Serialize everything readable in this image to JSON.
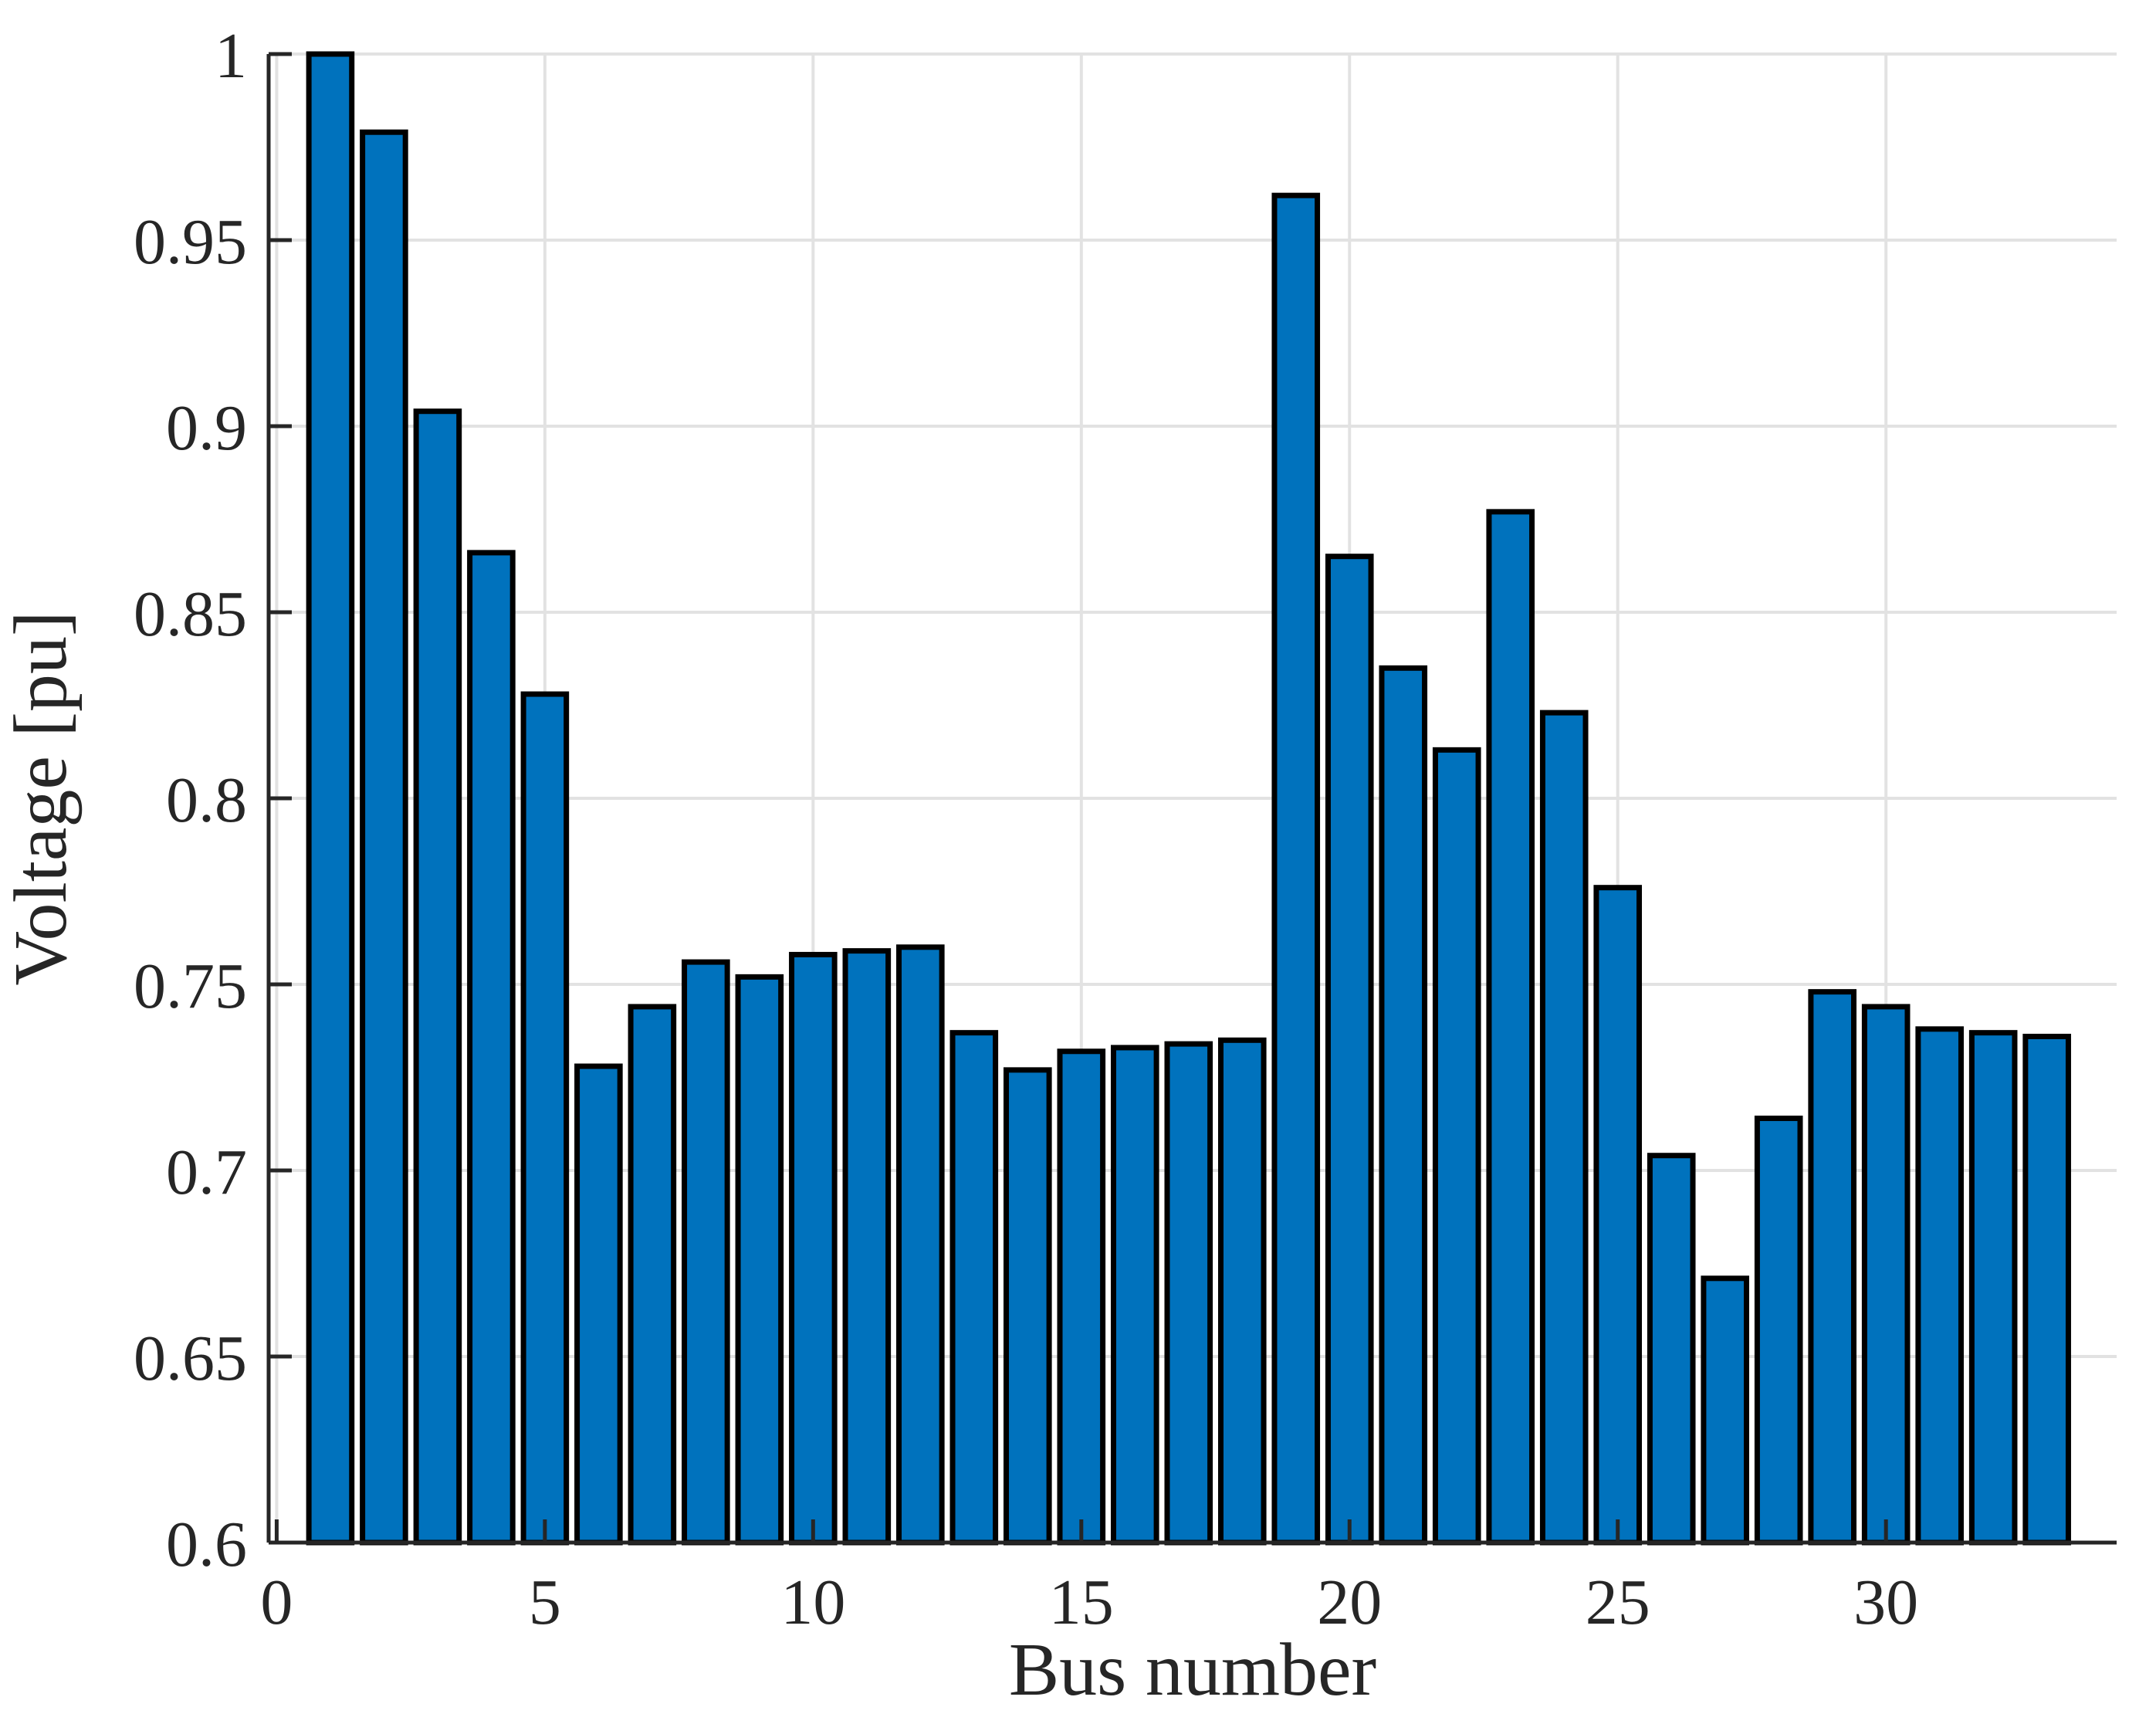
{
  "chart_data": {
    "type": "bar",
    "title": "",
    "xlabel": "Bus number",
    "ylabel": "Voltage [pu]",
    "categories": [
      1,
      2,
      3,
      4,
      5,
      6,
      7,
      8,
      9,
      10,
      11,
      12,
      13,
      14,
      15,
      16,
      17,
      18,
      19,
      20,
      21,
      22,
      23,
      24,
      25,
      26,
      27,
      28,
      29,
      30,
      31,
      32,
      33
    ],
    "values": [
      1.0,
      0.979,
      0.904,
      0.866,
      0.828,
      0.728,
      0.744,
      0.756,
      0.752,
      0.758,
      0.759,
      0.76,
      0.737,
      0.727,
      0.732,
      0.733,
      0.734,
      0.735,
      0.962,
      0.865,
      0.835,
      0.813,
      0.877,
      0.823,
      0.776,
      0.704,
      0.671,
      0.714,
      0.748,
      0.744,
      0.738,
      0.737,
      0.736
    ],
    "xlim": [
      -0.15,
      34.3
    ],
    "ylim": [
      0.6,
      1.0
    ],
    "xticks": [
      0,
      5,
      10,
      15,
      20,
      25,
      30
    ],
    "xtick_labels": [
      "0",
      "5",
      "10",
      "15",
      "20",
      "25",
      "30"
    ],
    "yticks": [
      0.6,
      0.65,
      0.7,
      0.75,
      0.8,
      0.85,
      0.9,
      0.95,
      1.0
    ],
    "ytick_labels": [
      "0.6",
      "0.65",
      "0.7",
      "0.75",
      "0.8",
      "0.85",
      "0.9",
      "0.95",
      "1"
    ],
    "grid": true,
    "legend": null,
    "bar_width": 0.8,
    "colors": {
      "bar_fill": "#0072BD",
      "bar_edge": "#000000",
      "grid": "#E2E2E2",
      "axis": "#262626",
      "text": "#262626",
      "background": "#FFFFFF"
    }
  }
}
